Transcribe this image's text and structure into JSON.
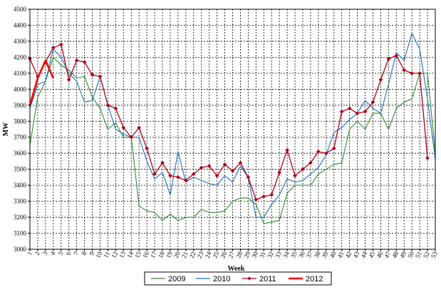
{
  "chart_data": {
    "type": "line",
    "title": "",
    "xlabel": "Week",
    "ylabel": "MW",
    "ylim": [
      3000,
      4500
    ],
    "ytick_step": 100,
    "x": [
      1,
      2,
      3,
      4,
      5,
      6,
      7,
      8,
      9,
      10,
      11,
      12,
      13,
      14,
      15,
      16,
      17,
      18,
      19,
      20,
      21,
      22,
      23,
      24,
      25,
      26,
      27,
      28,
      29,
      30,
      31,
      32,
      33,
      34,
      35,
      36,
      37,
      38,
      39,
      40,
      41,
      42,
      43,
      44,
      45,
      46,
      47,
      48,
      49,
      50,
      51,
      52,
      53
    ],
    "grid": true,
    "legend_position": "bottom",
    "series": [
      {
        "name": "2009",
        "color": "#2e8b2e",
        "marker": "none",
        "values": [
          3650,
          3950,
          4050,
          4200,
          4150,
          4120,
          4070,
          4080,
          3950,
          3880,
          3750,
          3790,
          3700,
          3700,
          3270,
          3240,
          3230,
          3180,
          3220,
          3180,
          3200,
          3200,
          3250,
          3230,
          3230,
          3240,
          3300,
          3320,
          3320,
          3280,
          3160,
          3170,
          3180,
          3350,
          3400,
          3400,
          3400,
          3470,
          3500,
          3530,
          3540,
          3750,
          3800,
          3750,
          3850,
          3850,
          3750,
          3880,
          3920,
          3940,
          4100,
          4100,
          3600
        ]
      },
      {
        "name": "2010",
        "color": "#1f6fbf",
        "marker": "none",
        "values": [
          3880,
          4030,
          4050,
          4250,
          4200,
          4100,
          4050,
          3920,
          3930,
          4080,
          3900,
          3750,
          3720,
          3700,
          3700,
          3550,
          3440,
          3480,
          3340,
          3610,
          3420,
          3450,
          3430,
          3410,
          3400,
          3460,
          3420,
          3520,
          3450,
          3200,
          3200,
          3280,
          3340,
          3440,
          3420,
          3430,
          3470,
          3510,
          3590,
          3730,
          3760,
          3810,
          3850,
          3930,
          3880,
          3850,
          4030,
          4230,
          4180,
          4350,
          4250,
          3940,
          3560
        ]
      },
      {
        "name": "2011",
        "color": "#b0001a",
        "marker": "diamond",
        "values": [
          4190,
          4080,
          4170,
          4260,
          4280,
          4060,
          4180,
          4170,
          4090,
          4080,
          3900,
          3880,
          3760,
          3700,
          3760,
          3630,
          3470,
          3540,
          3460,
          3450,
          3430,
          3470,
          3510,
          3520,
          3460,
          3530,
          3490,
          3540,
          3450,
          3310,
          3330,
          3340,
          3480,
          3620,
          3460,
          3500,
          3540,
          3610,
          3600,
          3630,
          3860,
          3880,
          3850,
          3860,
          3920,
          4060,
          4190,
          4210,
          4120,
          4100,
          4100,
          3570,
          null
        ]
      },
      {
        "name": "2012",
        "color": "#ff0000",
        "marker": "none",
        "values": [
          3900,
          4070,
          4180,
          4070,
          null,
          null,
          null,
          null,
          null,
          null,
          null,
          null,
          null,
          null,
          null,
          null,
          null,
          null,
          null,
          null,
          null,
          null,
          null,
          null,
          null,
          null,
          null,
          null,
          null,
          null,
          null,
          null,
          null,
          null,
          null,
          null,
          null,
          null,
          null,
          null,
          null,
          null,
          null,
          null,
          null,
          null,
          null,
          null,
          null,
          null,
          null,
          null,
          null
        ]
      }
    ]
  }
}
